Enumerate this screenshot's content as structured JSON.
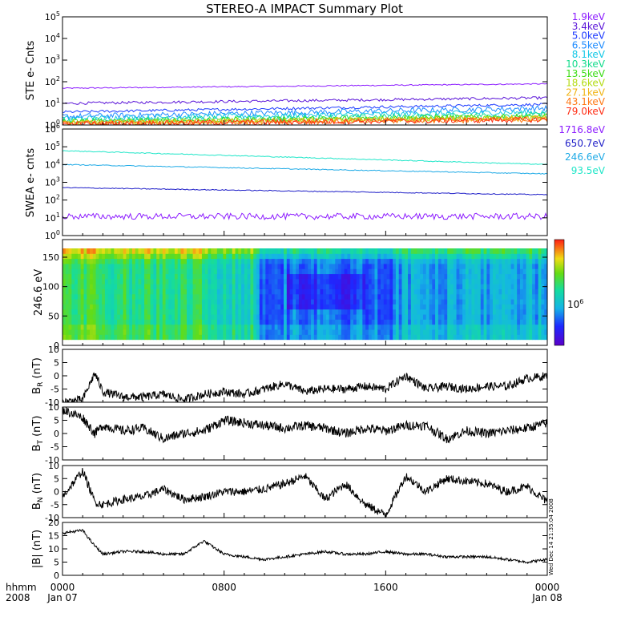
{
  "title": "STEREO-A IMPACT Summary Plot",
  "time_axis": {
    "row_label": "hhmm",
    "year_label": "2008",
    "ticks": [
      {
        "hours": 0,
        "time": "0000",
        "date": "Jan 07"
      },
      {
        "hours": 8,
        "time": "0800",
        "date": ""
      },
      {
        "hours": 16,
        "time": "1600",
        "date": ""
      },
      {
        "hours": 24,
        "time": "0000",
        "date": "Jan 08"
      }
    ],
    "range_hours": [
      0,
      24
    ]
  },
  "footer_stamp": "Wed Dec 14 21:35:04 2008",
  "colors": {
    "1.9keV": "#8c1cff",
    "3.4keV": "#5a14d8",
    "5.0keV": "#1e3cff",
    "6.5keV": "#1e8cff",
    "8.1keV": "#14c8e6",
    "10.3keV": "#14dc8c",
    "13.5keV": "#3cdc14",
    "18.6keV": "#b4dc14",
    "27.1keV": "#f0b414",
    "43.1keV": "#ff7814",
    "79.0keV": "#ff2d14",
    "1716.8eV": "#8c1cff",
    "650.7eV": "#1e1ec8",
    "246.6eV": "#1eaae6",
    "93.5eV": "#1ee6c8",
    "b_field": "#000000"
  },
  "chart_data": [
    {
      "type": "line",
      "ylabel": "STE e- Cnts",
      "y_scale": "log",
      "ylim": [
        1,
        100000
      ],
      "y_ticks": [
        "10^0",
        "10^1",
        "10^2",
        "10^3",
        "10^4",
        "10^5"
      ],
      "series": [
        {
          "name": "1.9keV",
          "level": 50,
          "end_level": 80
        },
        {
          "name": "3.4keV",
          "level": 10,
          "end_level": 18
        },
        {
          "name": "5.0keV",
          "level": 4,
          "end_level": 9
        },
        {
          "name": "6.5keV",
          "level": 2.5,
          "end_level": 6
        },
        {
          "name": "8.1keV",
          "level": 2,
          "end_level": 4
        },
        {
          "name": "10.3keV",
          "level": 1.6,
          "end_level": 3
        },
        {
          "name": "13.5keV",
          "level": 1.4,
          "end_level": 2.5
        },
        {
          "name": "18.6keV",
          "level": 1.3,
          "end_level": 2.2
        },
        {
          "name": "27.1keV",
          "level": 1.2,
          "end_level": 2
        },
        {
          "name": "43.1keV",
          "level": 1.1,
          "end_level": 1.8
        },
        {
          "name": "79.0keV",
          "level": 1.1,
          "end_level": 1.8
        }
      ]
    },
    {
      "type": "line",
      "ylabel": "SWEA e- cnts",
      "y_scale": "log",
      "ylim": [
        1,
        1000000
      ],
      "y_ticks": [
        "10^0",
        "10^1",
        "10^2",
        "10^3",
        "10^4",
        "10^5",
        "10^6"
      ],
      "series": [
        {
          "name": "1716.8eV",
          "level": 12,
          "end_level": 12
        },
        {
          "name": "650.7eV",
          "level": 500,
          "end_level": 200
        },
        {
          "name": "246.6eV",
          "level": 10000,
          "end_level": 3000
        },
        {
          "name": "93.5eV",
          "level": 60000,
          "end_level": 10000
        }
      ]
    },
    {
      "type": "heatmap",
      "ylabel": "246.6 eV",
      "ylim": [
        0,
        180
      ],
      "y_ticks": [
        "0",
        "50",
        "100",
        "150"
      ],
      "colorbar_label": "10^6"
    },
    {
      "type": "line",
      "ylabel": "B_R (nT)",
      "ylim": [
        -10,
        10
      ],
      "y_ticks": [
        "-10",
        "-5",
        "0",
        "5",
        "10"
      ],
      "series": [
        {
          "name": "",
          "x": [
            0,
            1,
            1.6,
            2,
            3,
            4,
            5,
            6,
            7,
            8,
            9,
            10,
            11,
            12,
            13,
            14,
            15,
            16,
            17,
            18,
            19,
            20,
            21,
            22,
            23,
            24
          ],
          "values": [
            -10,
            -9,
            1,
            -6,
            -8,
            -8,
            -7,
            -9,
            -7,
            -6,
            -7,
            -5,
            -3,
            -6,
            -5,
            -5,
            -4,
            -5,
            0,
            -5,
            -4,
            -5,
            -4,
            -4,
            -1,
            0
          ]
        }
      ]
    },
    {
      "type": "line",
      "ylabel": "B_T (nT)",
      "ylim": [
        -10,
        10
      ],
      "y_ticks": [
        "-10",
        "-5",
        "0",
        "5",
        "10"
      ],
      "series": [
        {
          "name": "",
          "x": [
            0,
            1,
            1.6,
            2,
            3,
            4,
            5,
            6,
            7,
            8,
            9,
            10,
            11,
            12,
            13,
            14,
            15,
            16,
            17,
            18,
            19,
            20,
            21,
            22,
            23,
            24
          ],
          "values": [
            9,
            6,
            0,
            3,
            1,
            2,
            -2,
            0,
            1,
            5,
            4,
            3,
            2,
            3,
            2,
            0,
            2,
            1,
            3,
            3,
            -2,
            1,
            0,
            1,
            2,
            4
          ]
        }
      ]
    },
    {
      "type": "line",
      "ylabel": "B_N (nT)",
      "ylim": [
        -10,
        10
      ],
      "y_ticks": [
        "-10",
        "-5",
        "0",
        "5",
        "10"
      ],
      "series": [
        {
          "name": "",
          "x": [
            0,
            1,
            1.6,
            2,
            3,
            4,
            5,
            6,
            7,
            8,
            9,
            10,
            11,
            12,
            13,
            14,
            15,
            16,
            17,
            18,
            19,
            20,
            21,
            22,
            23,
            24
          ],
          "values": [
            -2,
            8,
            -4,
            -5,
            -3,
            -2,
            1,
            -3,
            -2,
            0,
            0,
            1,
            3,
            6,
            -3,
            3,
            -5,
            -9,
            6,
            0,
            5,
            4,
            3,
            0,
            2,
            -4
          ]
        }
      ]
    },
    {
      "type": "line",
      "ylabel": "|B| (nT)",
      "ylim": [
        0,
        20
      ],
      "y_ticks": [
        "0",
        "5",
        "10",
        "15",
        "20"
      ],
      "series": [
        {
          "name": "",
          "x": [
            0,
            1,
            1.5,
            2,
            3,
            4,
            5,
            6,
            7,
            8,
            9,
            10,
            11,
            12,
            13,
            14,
            15,
            16,
            17,
            18,
            19,
            20,
            21,
            22,
            23,
            24
          ],
          "values": [
            16,
            17,
            12,
            8,
            9,
            9,
            8,
            8,
            13,
            8,
            7,
            6,
            7,
            8,
            9,
            8,
            8,
            9,
            8,
            8,
            7,
            7,
            7,
            6,
            5,
            6
          ]
        }
      ]
    }
  ]
}
